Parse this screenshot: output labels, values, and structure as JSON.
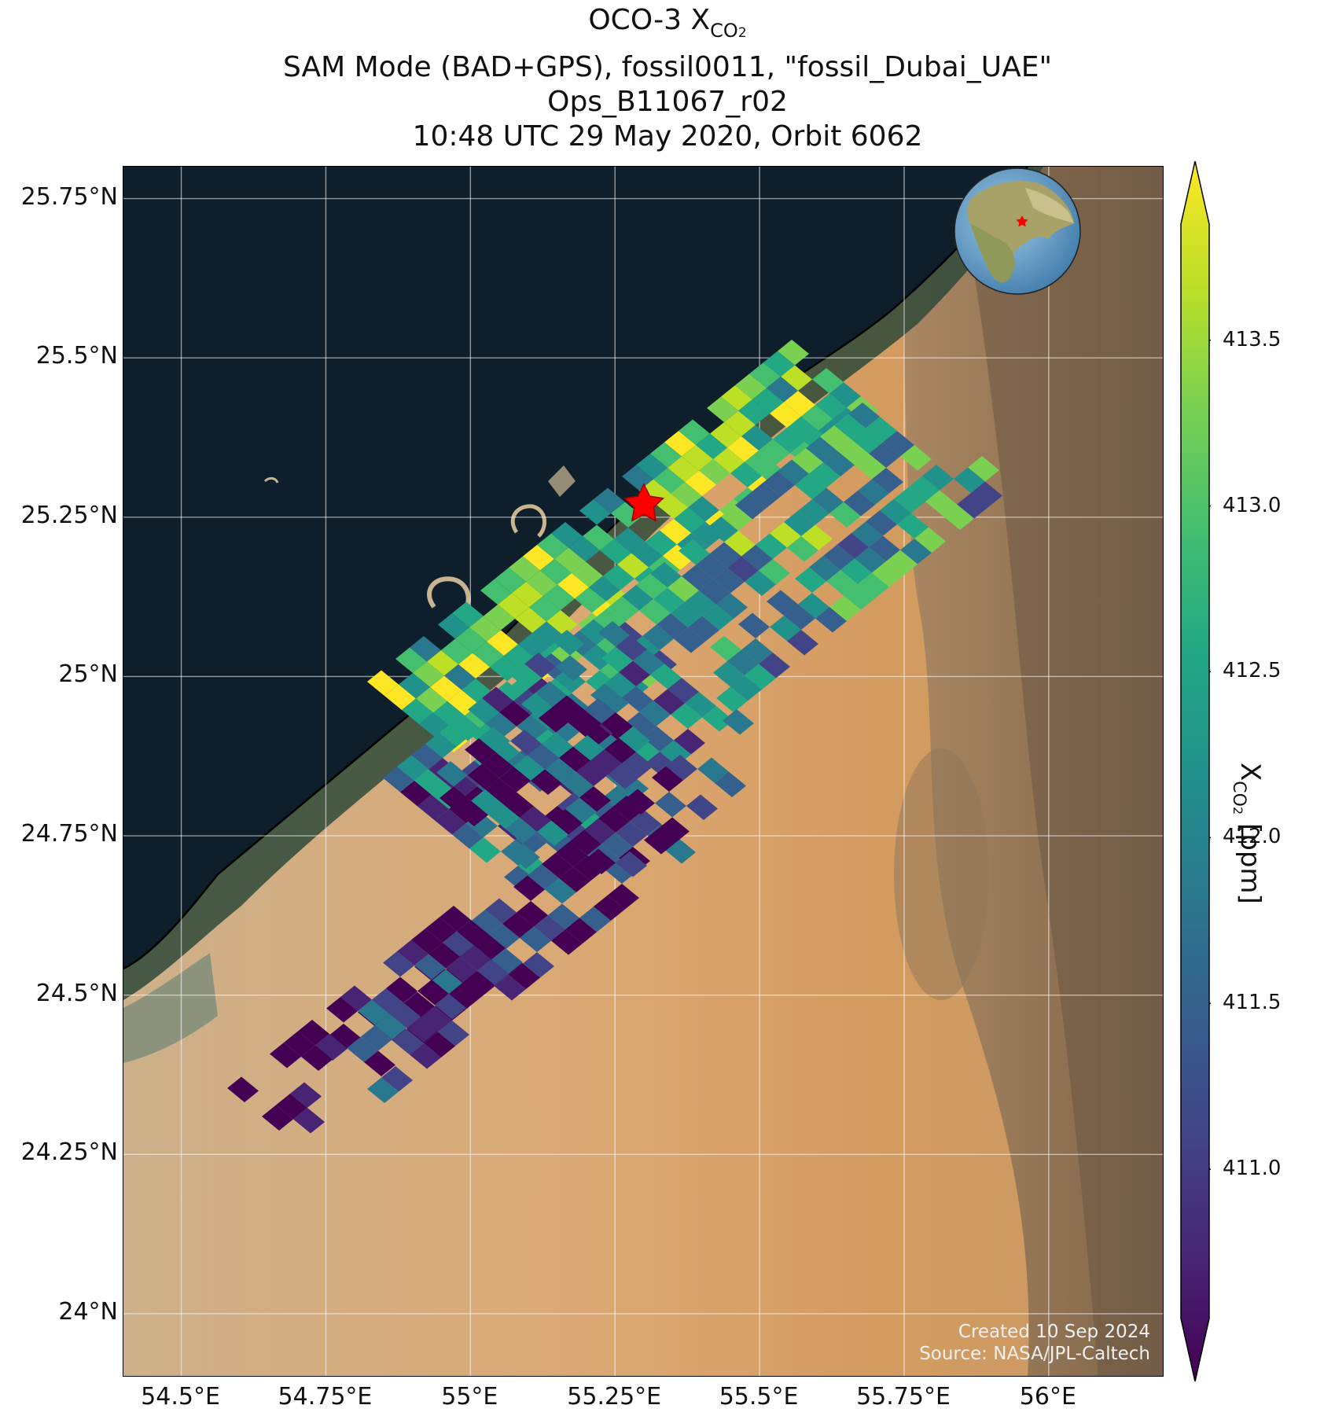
{
  "title": {
    "line1_prefix": "OCO-3 X",
    "line1_sub": "CO",
    "line1_sub2": "2",
    "line2": "SAM Mode (BAD+GPS), fossil0011, \"fossil_Dubai_UAE\"",
    "line3": "Ops_B11067_r02",
    "line4": "10:48 UTC 29 May 2020, Orbit 6062"
  },
  "map": {
    "lon_ticks": [
      "54.5°E",
      "54.75°E",
      "55°E",
      "55.25°E",
      "55.5°E",
      "55.75°E",
      "56°E"
    ],
    "lat_ticks": [
      "25.75°N",
      "25.5°N",
      "25.25°N",
      "25°N",
      "24.75°N",
      "24.5°N",
      "24.25°N",
      "24°N"
    ],
    "grid": true,
    "target_marker": {
      "name": "star",
      "lon": 55.3,
      "lat": 25.27,
      "color": "#ff0000"
    },
    "colors": {
      "sea": "#0e1f2b",
      "desert": "#d9a76a",
      "mountains": "#8a7255",
      "coastline": "#000000"
    },
    "inset": {
      "type": "globe",
      "marker": "star",
      "marker_color": "#ff0000"
    }
  },
  "colorbar": {
    "colormap": "viridis",
    "extend": "both",
    "ticks": [
      "411.0",
      "411.5",
      "412.0",
      "412.5",
      "413.0",
      "413.5"
    ],
    "label_prefix": "X",
    "label_sub": "CO",
    "label_sub2": "2",
    "label_suffix": " [ppm]"
  },
  "credits": {
    "created": "Created 10 Sep 2024",
    "source": "Source: NASA/JPL-Caltech"
  }
}
